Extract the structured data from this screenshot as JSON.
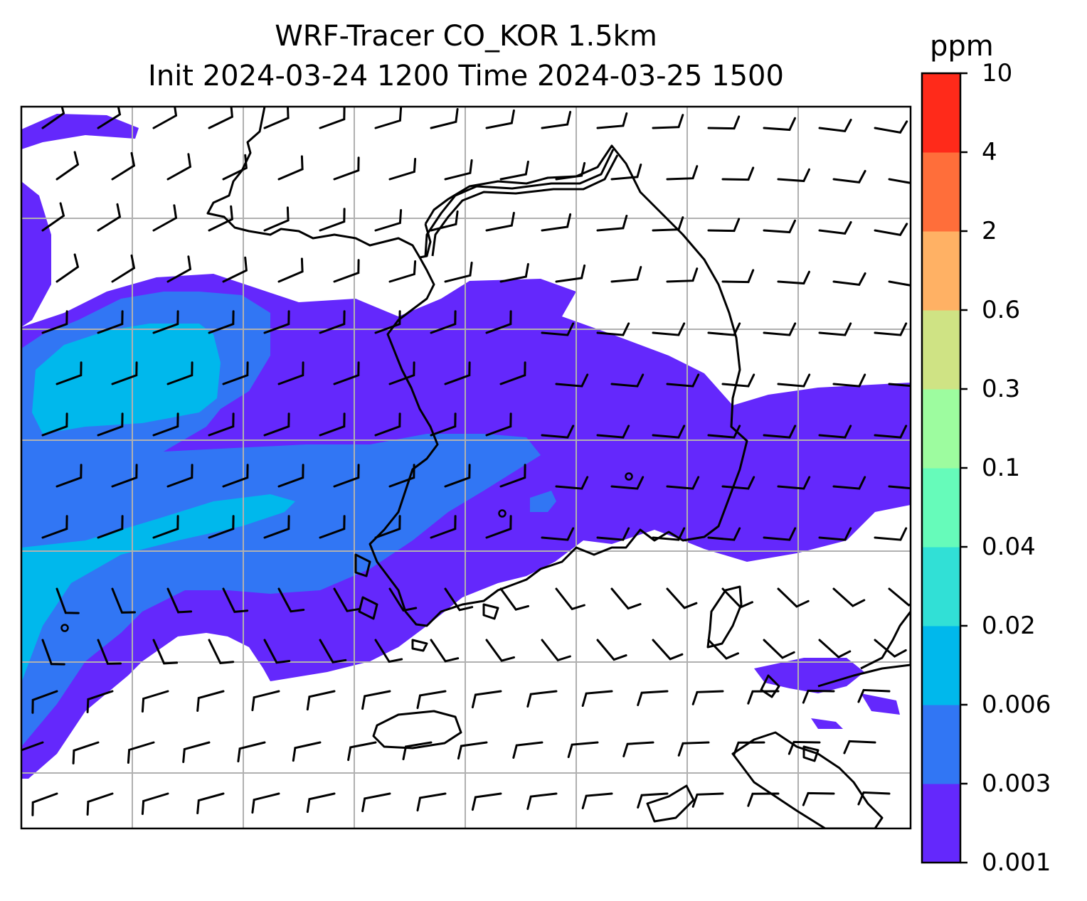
{
  "title": {
    "line1": "WRF-Tracer CO_KOR 1.5km",
    "line2": "Init 2024-03-24 1200 Time 2024-03-25 1500"
  },
  "colorbar": {
    "unit": "ppm",
    "levels": [
      "0.001",
      "0.003",
      "0.006",
      "0.02",
      "0.04",
      "0.1",
      "0.3",
      "0.6",
      "2",
      "4",
      "10"
    ],
    "colors": [
      "#6428fc",
      "#3176f4",
      "#00b8ec",
      "#31e0d6",
      "#66fbba",
      "#9dfc9f",
      "#cfe384",
      "#ffb164",
      "#ff6e3a",
      "#ff2a1a"
    ]
  },
  "map": {
    "gridlines": true,
    "coastline_color": "#000000",
    "background": "#ffffff"
  }
}
